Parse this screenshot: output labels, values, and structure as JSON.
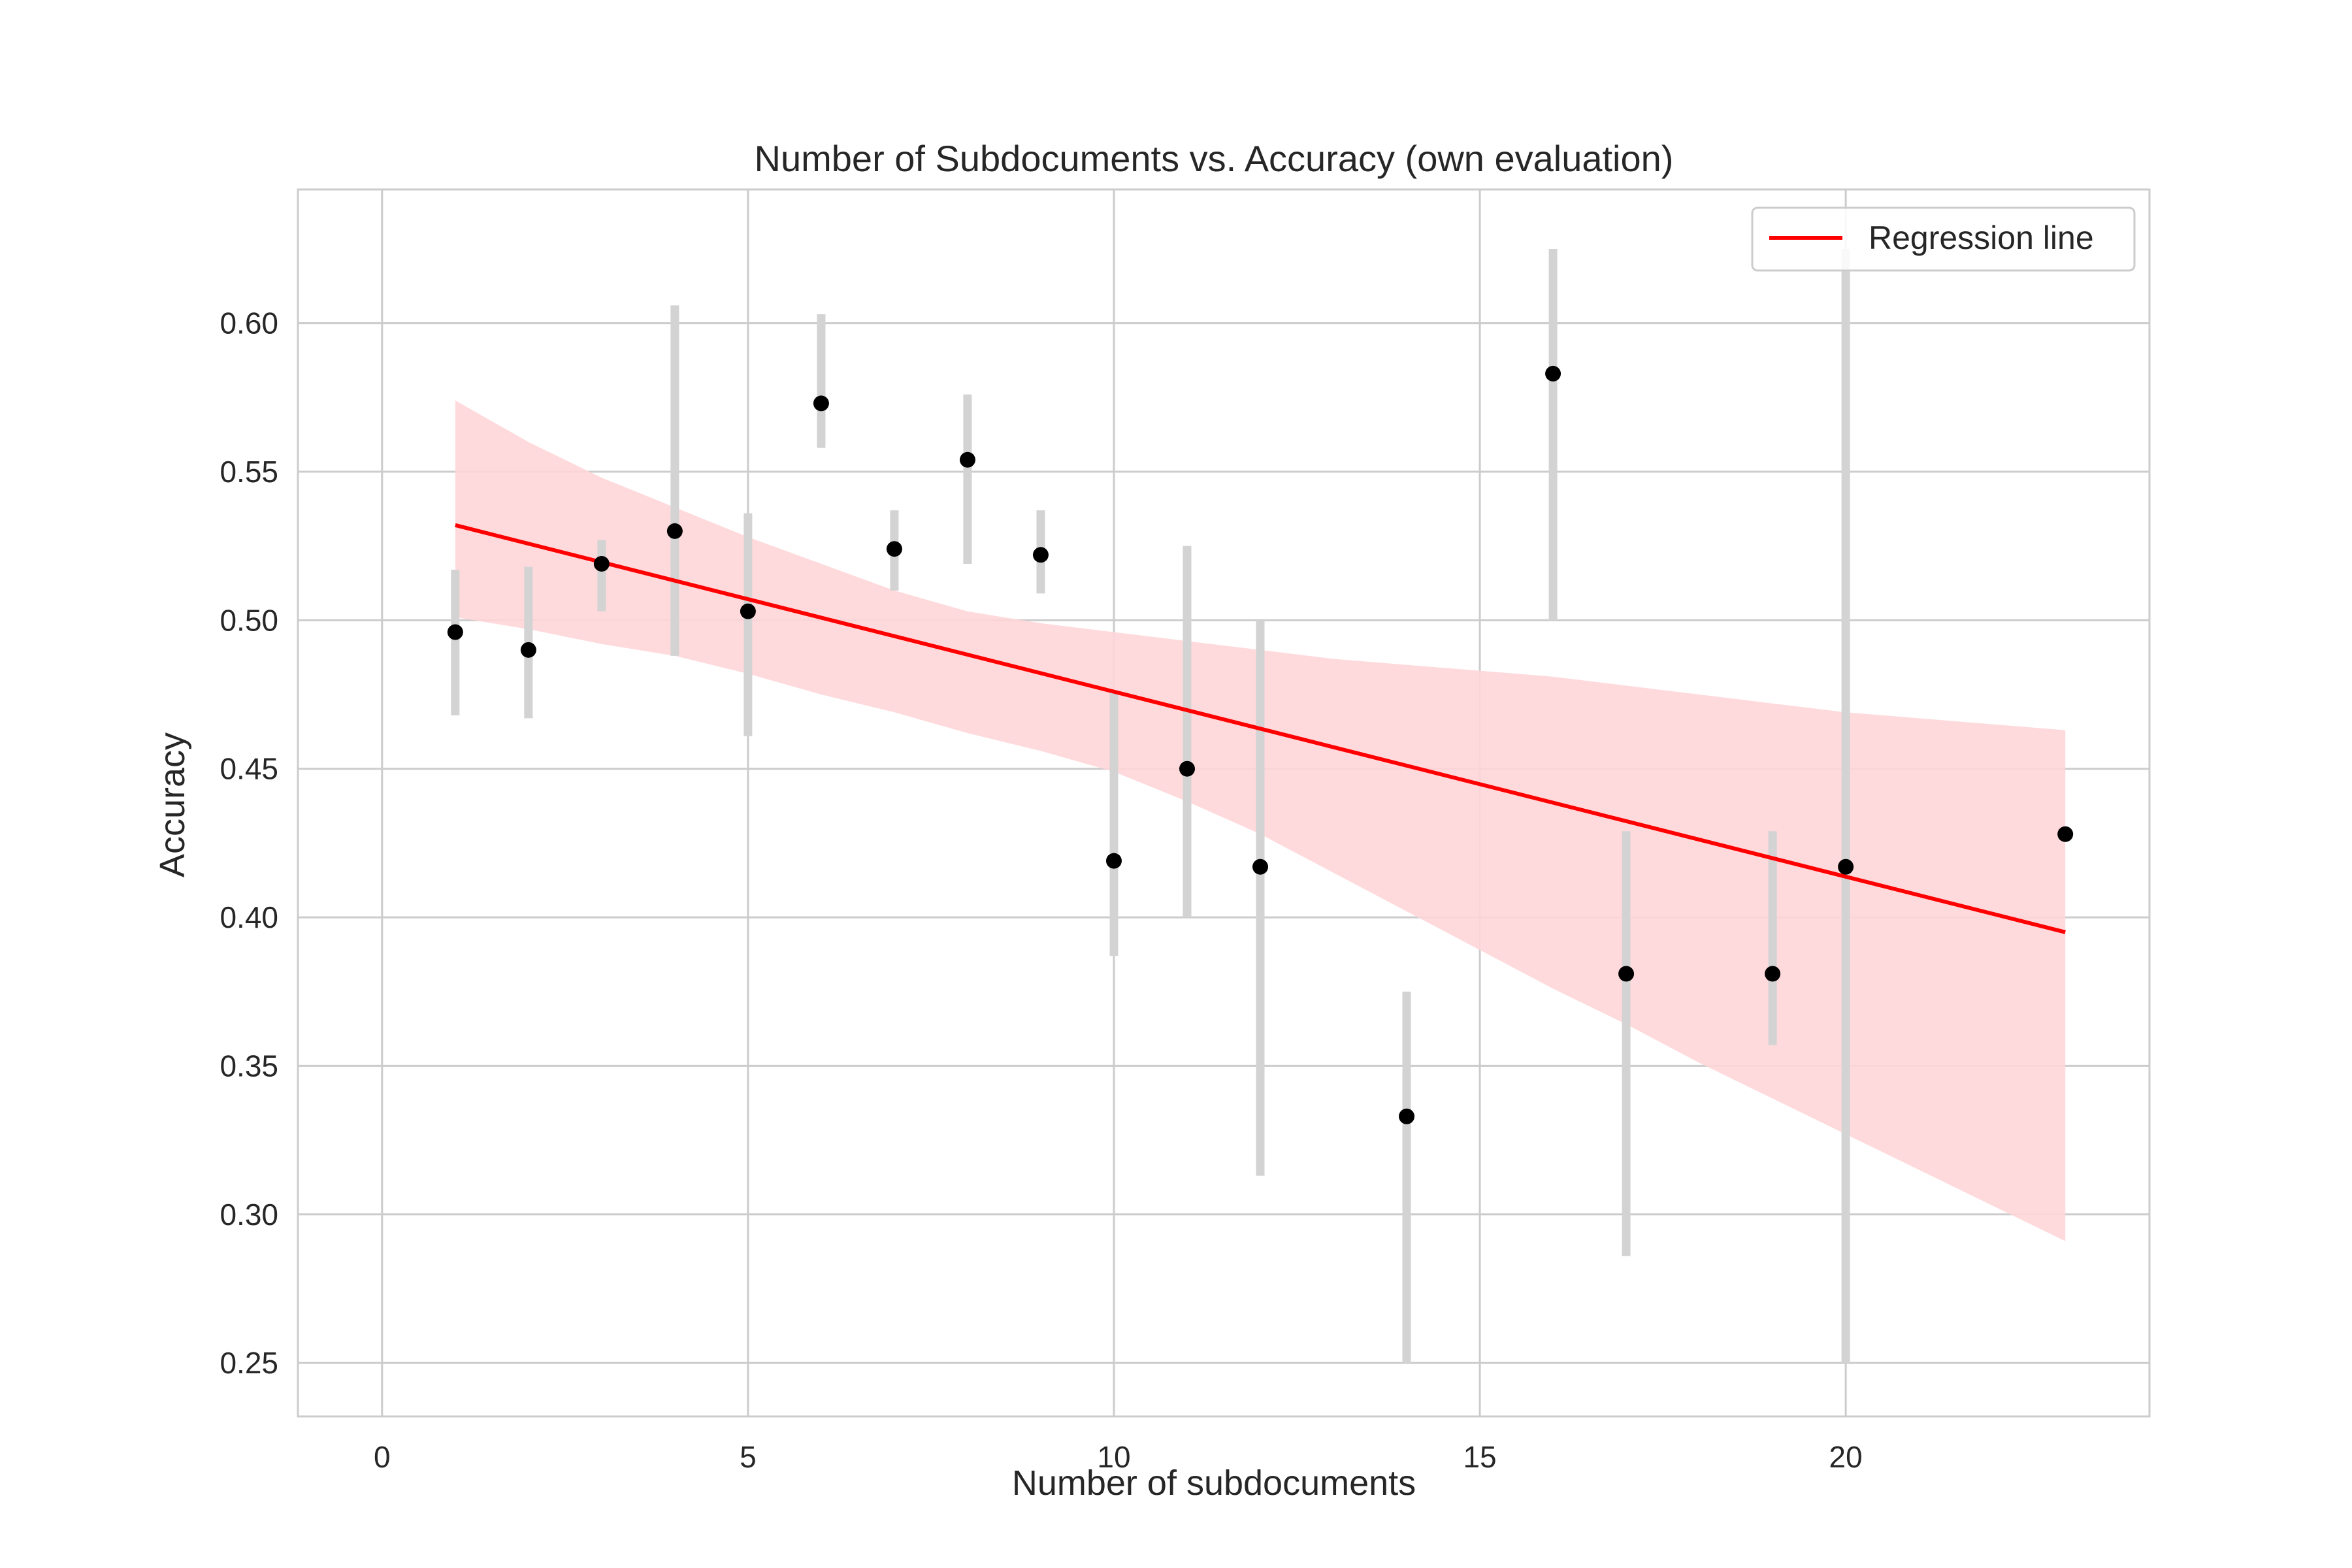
{
  "chart_data": {
    "type": "scatter",
    "title": "Number of Subdocuments vs. Accuracy (own evaluation)",
    "xlabel": "Number of subdocuments",
    "ylabel": "Accuracy",
    "xlim": [
      -1.15,
      24.15
    ],
    "ylim": [
      0.232,
      0.645
    ],
    "x_ticks": [
      0,
      5,
      10,
      15,
      20
    ],
    "y_ticks": [
      0.25,
      0.3,
      0.35,
      0.4,
      0.45,
      0.5,
      0.55,
      0.6
    ],
    "grid": true,
    "legend": {
      "position": "top-right",
      "entries": [
        "Regression line"
      ]
    },
    "colors": {
      "points": "#000000",
      "error_bars": "#d3d3d3",
      "regression_line": "#ff0000",
      "confidence_band": "#ffd6d8",
      "grid": "#cccccc",
      "frame": "#cccccc"
    },
    "points": [
      {
        "x": 1,
        "y": 0.496,
        "err_low": 0.468,
        "err_high": 0.517
      },
      {
        "x": 2,
        "y": 0.49,
        "err_low": 0.467,
        "err_high": 0.518
      },
      {
        "x": 3,
        "y": 0.519,
        "err_low": 0.503,
        "err_high": 0.527
      },
      {
        "x": 4,
        "y": 0.53,
        "err_low": 0.488,
        "err_high": 0.606
      },
      {
        "x": 5,
        "y": 0.503,
        "err_low": 0.461,
        "err_high": 0.536
      },
      {
        "x": 6,
        "y": 0.573,
        "err_low": 0.558,
        "err_high": 0.603
      },
      {
        "x": 7,
        "y": 0.524,
        "err_low": 0.51,
        "err_high": 0.537
      },
      {
        "x": 8,
        "y": 0.554,
        "err_low": 0.519,
        "err_high": 0.576
      },
      {
        "x": 9,
        "y": 0.522,
        "err_low": 0.509,
        "err_high": 0.537
      },
      {
        "x": 10,
        "y": 0.419,
        "err_low": 0.387,
        "err_high": 0.476
      },
      {
        "x": 11,
        "y": 0.45,
        "err_low": 0.4,
        "err_high": 0.525
      },
      {
        "x": 12,
        "y": 0.417,
        "err_low": 0.313,
        "err_high": 0.5
      },
      {
        "x": 14,
        "y": 0.333,
        "err_low": 0.25,
        "err_high": 0.375
      },
      {
        "x": 16,
        "y": 0.583,
        "err_low": 0.5,
        "err_high": 0.625
      },
      {
        "x": 17,
        "y": 0.381,
        "err_low": 0.286,
        "err_high": 0.429
      },
      {
        "x": 19,
        "y": 0.381,
        "err_low": 0.357,
        "err_high": 0.429
      },
      {
        "x": 20,
        "y": 0.417,
        "err_low": 0.25,
        "err_high": 0.625
      },
      {
        "x": 23,
        "y": 0.428,
        "err_low": 0.428,
        "err_high": 0.428
      }
    ],
    "regression_line": {
      "x": [
        1,
        23
      ],
      "y": [
        0.532,
        0.395
      ]
    },
    "confidence_band": {
      "x": [
        1,
        2,
        3,
        4,
        5,
        6,
        7,
        8,
        9,
        10,
        11,
        12,
        13,
        14,
        15,
        16,
        17,
        18,
        19,
        20,
        21,
        22,
        23
      ],
      "lower": [
        0.501,
        0.497,
        0.492,
        0.488,
        0.482,
        0.475,
        0.469,
        0.462,
        0.456,
        0.449,
        0.439,
        0.428,
        0.415,
        0.402,
        0.389,
        0.376,
        0.364,
        0.351,
        0.339,
        0.327,
        0.315,
        0.303,
        0.291
      ],
      "upper": [
        0.574,
        0.56,
        0.548,
        0.538,
        0.528,
        0.519,
        0.51,
        0.503,
        0.499,
        0.496,
        0.493,
        0.49,
        0.487,
        0.485,
        0.483,
        0.481,
        0.478,
        0.475,
        0.472,
        0.469,
        0.467,
        0.465,
        0.463
      ]
    }
  }
}
